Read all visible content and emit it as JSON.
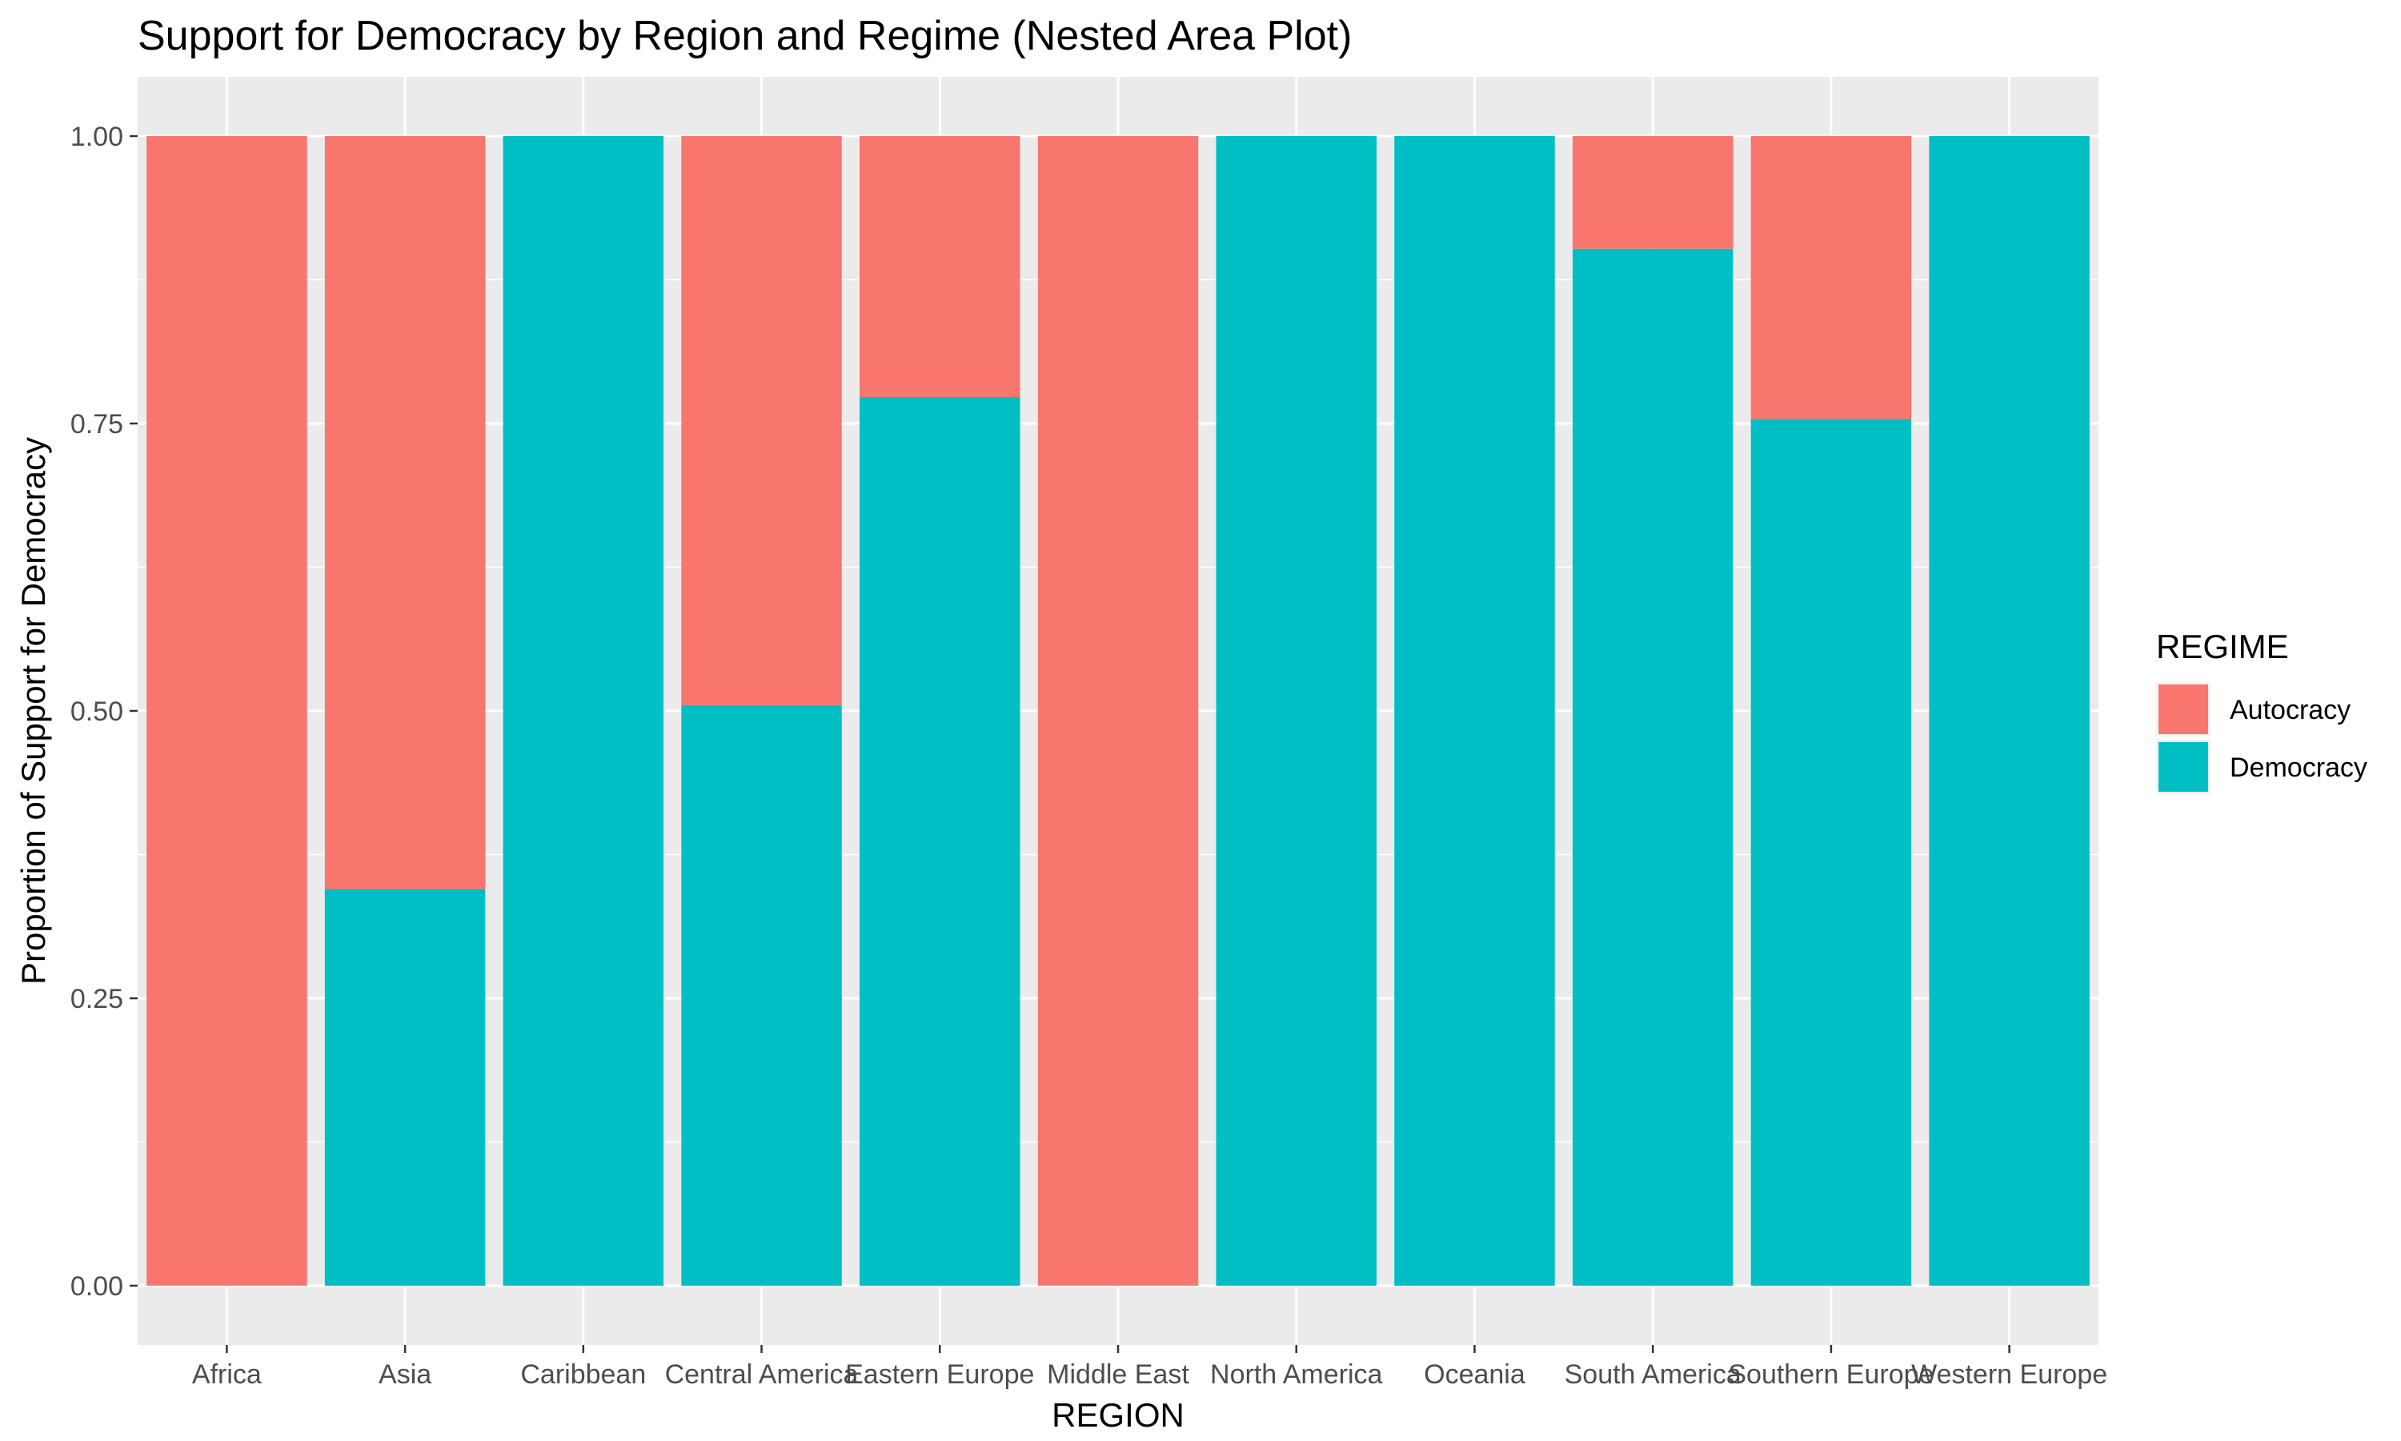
{
  "chart_data": {
    "type": "bar",
    "stacked": true,
    "title": "Support for Democracy by Region and Regime (Nested Area Plot)",
    "xlabel": "REGION",
    "ylabel": "Proportion of Support for Democracy",
    "ylim": [
      0,
      1
    ],
    "yticks": [
      "0.00",
      "0.25",
      "0.50",
      "0.75",
      "1.00"
    ],
    "grid": true,
    "legend": {
      "title": "REGIME",
      "position": "right"
    },
    "categories": [
      "Africa",
      "Asia",
      "Caribbean",
      "Central America",
      "Eastern Europe",
      "Middle East",
      "North America",
      "Oceania",
      "South America",
      "Southern Europe",
      "Western Europe"
    ],
    "series": [
      {
        "name": "Democracy",
        "color": "#00BFC4",
        "values": [
          0.0,
          0.345,
          1.0,
          0.505,
          0.773,
          0.0,
          1.0,
          1.0,
          0.902,
          0.754,
          1.0
        ]
      },
      {
        "name": "Autocracy",
        "color": "#F8766D",
        "values": [
          1.0,
          0.655,
          0.0,
          0.495,
          0.227,
          1.0,
          0.0,
          0.0,
          0.098,
          0.246,
          0.0
        ]
      }
    ],
    "legend_order": [
      "Autocracy",
      "Democracy"
    ]
  }
}
